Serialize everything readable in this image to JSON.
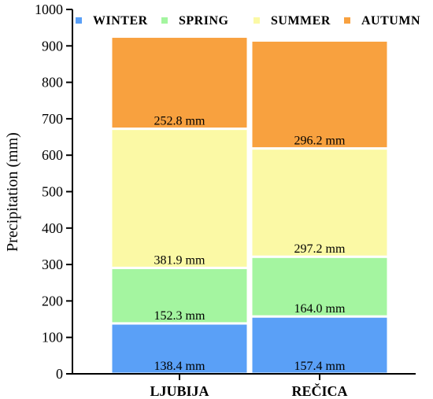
{
  "chart_data": {
    "type": "bar",
    "stacked": true,
    "categories": [
      "LJUBIJA",
      "REČICA"
    ],
    "ylabel": "Precipitation (mm)",
    "xlabel": "",
    "ylim": [
      0,
      1000
    ],
    "yticks": [
      0,
      100,
      200,
      300,
      400,
      500,
      600,
      700,
      800,
      900,
      1000
    ],
    "legend_position": "top",
    "series": [
      {
        "name": "WINTER",
        "color": "#5aa0f7",
        "values": [
          138.4,
          157.4
        ],
        "labels": [
          "138.4 mm",
          "157.4 mm"
        ]
      },
      {
        "name": "SPRING",
        "color": "#a4f5a0",
        "values": [
          152.3,
          164.0
        ],
        "labels": [
          "152.3 mm",
          "164.0 mm"
        ]
      },
      {
        "name": "SUMMER",
        "color": "#fbf9a5",
        "values": [
          381.9,
          297.2
        ],
        "labels": [
          "381.9 mm",
          "297.2 mm"
        ]
      },
      {
        "name": "AUTUMN",
        "color": "#f8a13f",
        "values": [
          252.8,
          296.2
        ],
        "labels": [
          "252.8 mm",
          "296.2 mm"
        ]
      }
    ]
  }
}
